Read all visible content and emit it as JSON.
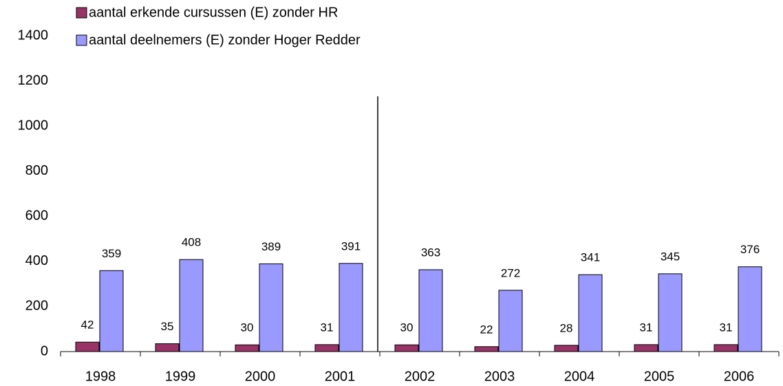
{
  "chart_data": {
    "type": "bar",
    "categories": [
      "1998",
      "1999",
      "2000",
      "2001",
      "2002",
      "2003",
      "2004",
      "2005",
      "2006"
    ],
    "series": [
      {
        "name": "aantal erkende cursussen (E) zonder HR",
        "color": "#993366",
        "values": [
          42,
          35,
          30,
          31,
          30,
          22,
          28,
          31,
          31
        ]
      },
      {
        "name": "aantal deelnemers (E) zonder Hoger Redder",
        "color": "#9999ff",
        "values": [
          359,
          408,
          389,
          391,
          363,
          272,
          341,
          345,
          376
        ]
      }
    ],
    "ylim": [
      0,
      1400
    ],
    "yticks": [
      0,
      200,
      400,
      600,
      800,
      1000,
      1200,
      1400
    ],
    "legend": "top-left"
  }
}
